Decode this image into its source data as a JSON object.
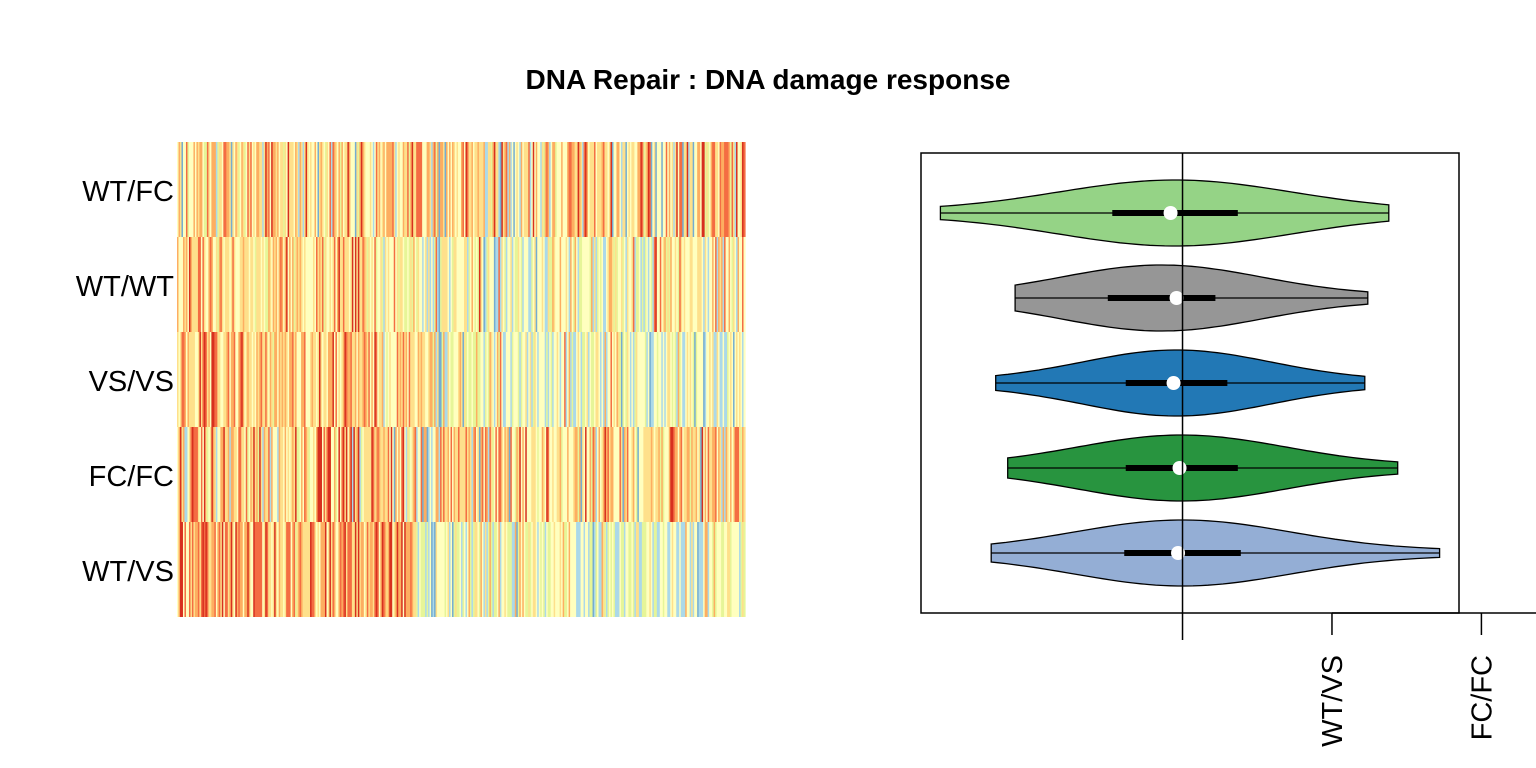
{
  "chart_data": [
    {
      "type": "heatmap",
      "title": "DNA Repair : DNA damage response",
      "rows": [
        "WT/FC",
        "WT/WT",
        "VS/VS",
        "FC/FC",
        "WT/VS"
      ],
      "colormap": [
        "#d7301f",
        "#f46d43",
        "#fdae61",
        "#fee08b",
        "#ffffbf",
        "#e6f598",
        "#abd9e9",
        "#74add1"
      ],
      "n_columns": 380,
      "row_profiles": [
        {
          "row": "WT/FC",
          "pattern": "mixed red/orange/yellow with scattered blue across all columns"
        },
        {
          "row": "WT/WT",
          "pattern": "mostly pale yellow, orange at left, light blue at right"
        },
        {
          "row": "VS/VS",
          "pattern": "orange/yellow left half, pale yellow and blue right half"
        },
        {
          "row": "FC/FC",
          "pattern": "mixed yellow/orange with scattered red and blue"
        },
        {
          "row": "WT/VS",
          "pattern": "red/orange left ~40%, blue/pale yellow right"
        }
      ]
    },
    {
      "type": "violin",
      "categories": [
        "WT/FC",
        "WT/WT",
        "VS/VS",
        "FC/FC",
        "WT/VS"
      ],
      "colors": [
        "#95d386",
        "#969696",
        "#2278b5",
        "#28943f",
        "#94aed5"
      ],
      "reference_line": 0,
      "xlim": [
        -1.75,
        1.85
      ],
      "xaxis_ticks": [
        0,
        1,
        2
      ],
      "xaxis_tick_labels": [
        "",
        "WT/VS",
        "FC/FC"
      ],
      "series": [
        {
          "name": "WT/FC",
          "min": -1.62,
          "max": 1.38,
          "q1": -0.47,
          "q3": 0.37,
          "median": -0.08
        },
        {
          "name": "WT/WT",
          "min": -1.12,
          "max": 1.24,
          "q1": -0.5,
          "q3": 0.22,
          "median": -0.04
        },
        {
          "name": "VS/VS",
          "min": -1.25,
          "max": 1.22,
          "q1": -0.38,
          "q3": 0.3,
          "median": -0.06
        },
        {
          "name": "FC/FC",
          "min": -1.17,
          "max": 1.44,
          "q1": -0.38,
          "q3": 0.37,
          "median": -0.02
        },
        {
          "name": "WT/VS",
          "min": -1.28,
          "max": 1.72,
          "q1": -0.39,
          "q3": 0.39,
          "median": -0.03
        }
      ]
    }
  ]
}
